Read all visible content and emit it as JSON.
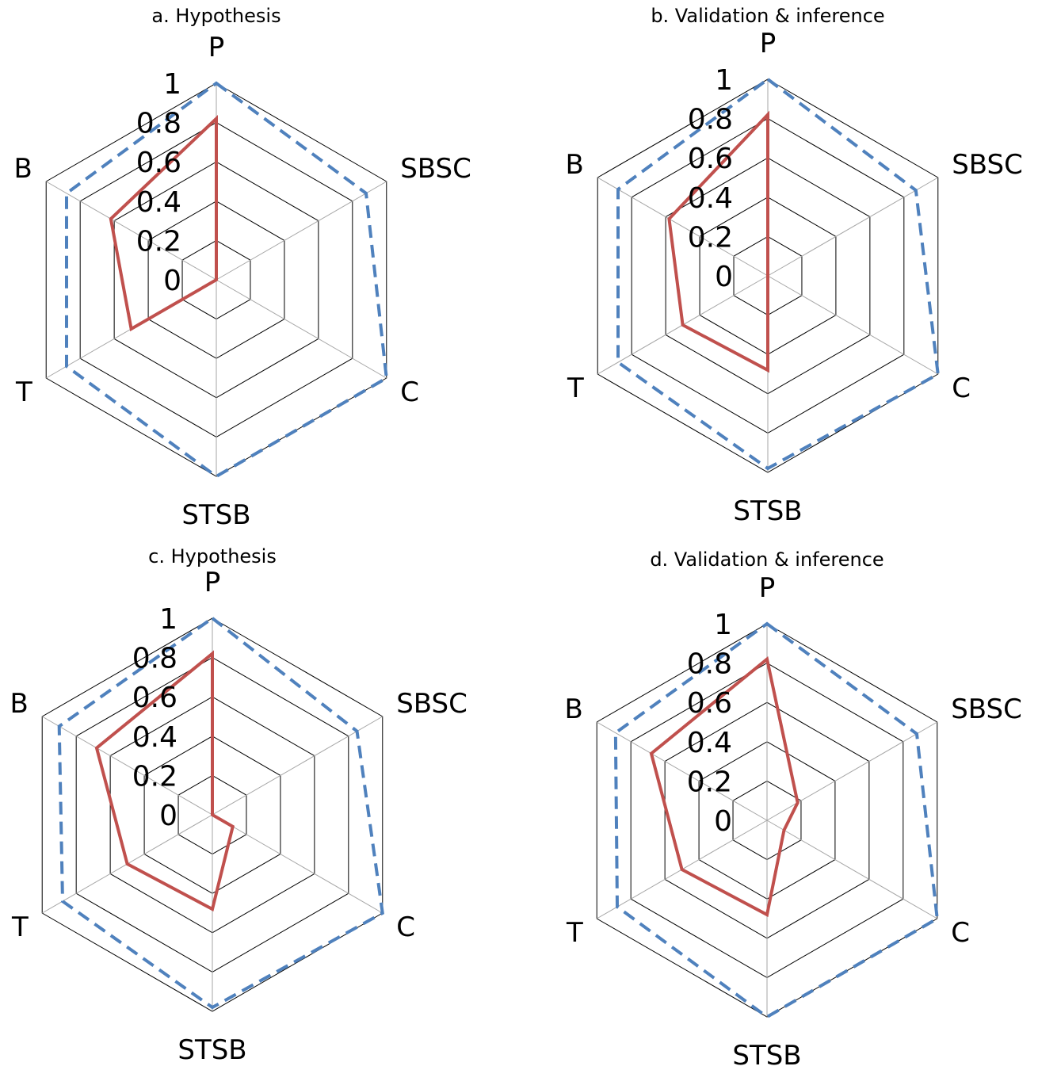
{
  "chart_data": [
    {
      "type": "radar",
      "title": "a. Hypothesis",
      "categories": [
        "P",
        "SBSC",
        "C",
        "STSB",
        "T",
        "B"
      ],
      "ticks": [
        "0",
        "0.2",
        "0.4",
        "0.6",
        "0.8",
        "1"
      ],
      "rlim": [
        0,
        1
      ],
      "grid": true,
      "series": [
        {
          "style": "solid",
          "color": "#c0504d",
          "values": [
            0.82,
            0.0,
            0.0,
            0.0,
            0.5,
            0.62
          ]
        },
        {
          "style": "dashed",
          "color": "#4f81bd",
          "values": [
            1.0,
            0.88,
            1.0,
            1.0,
            0.88,
            0.88
          ]
        }
      ]
    },
    {
      "type": "radar",
      "title": "b. Validation & inference",
      "categories": [
        "P",
        "SBSC",
        "C",
        "STSB",
        "T",
        "B"
      ],
      "ticks": [
        "0",
        "0.2",
        "0.4",
        "0.6",
        "0.8",
        "1"
      ],
      "rlim": [
        0,
        1
      ],
      "grid": true,
      "series": [
        {
          "style": "solid",
          "color": "#c0504d",
          "values": [
            0.82,
            0.0,
            0.0,
            0.48,
            0.5,
            0.58
          ]
        },
        {
          "style": "dashed",
          "color": "#4f81bd",
          "values": [
            1.0,
            0.87,
            1.0,
            0.98,
            0.88,
            0.88
          ]
        }
      ]
    },
    {
      "type": "radar",
      "title": "c. Hypothesis",
      "categories": [
        "P",
        "SBSC",
        "C",
        "STSB",
        "T",
        "B"
      ],
      "ticks": [
        "0",
        "0.2",
        "0.4",
        "0.6",
        "0.8",
        "1"
      ],
      "rlim": [
        0,
        1
      ],
      "grid": true,
      "series": [
        {
          "style": "solid",
          "color": "#c0504d",
          "values": [
            0.82,
            0.0,
            0.12,
            0.48,
            0.5,
            0.68
          ]
        },
        {
          "style": "dashed",
          "color": "#4f81bd",
          "values": [
            1.0,
            0.85,
            1.0,
            0.98,
            0.88,
            0.9
          ]
        }
      ]
    },
    {
      "type": "radar",
      "title": "d. Validation & inference",
      "categories": [
        "P",
        "SBSC",
        "C",
        "STSB",
        "T",
        "B"
      ],
      "ticks": [
        "0",
        "0.2",
        "0.4",
        "0.6",
        "0.8",
        "1"
      ],
      "rlim": [
        0,
        1
      ],
      "grid": true,
      "series": [
        {
          "style": "solid",
          "color": "#c0504d",
          "values": [
            0.82,
            0.18,
            0.1,
            0.48,
            0.5,
            0.68
          ]
        },
        {
          "style": "dashed",
          "color": "#4f81bd",
          "values": [
            1.0,
            0.88,
            1.0,
            1.0,
            0.88,
            0.89
          ]
        }
      ]
    }
  ]
}
